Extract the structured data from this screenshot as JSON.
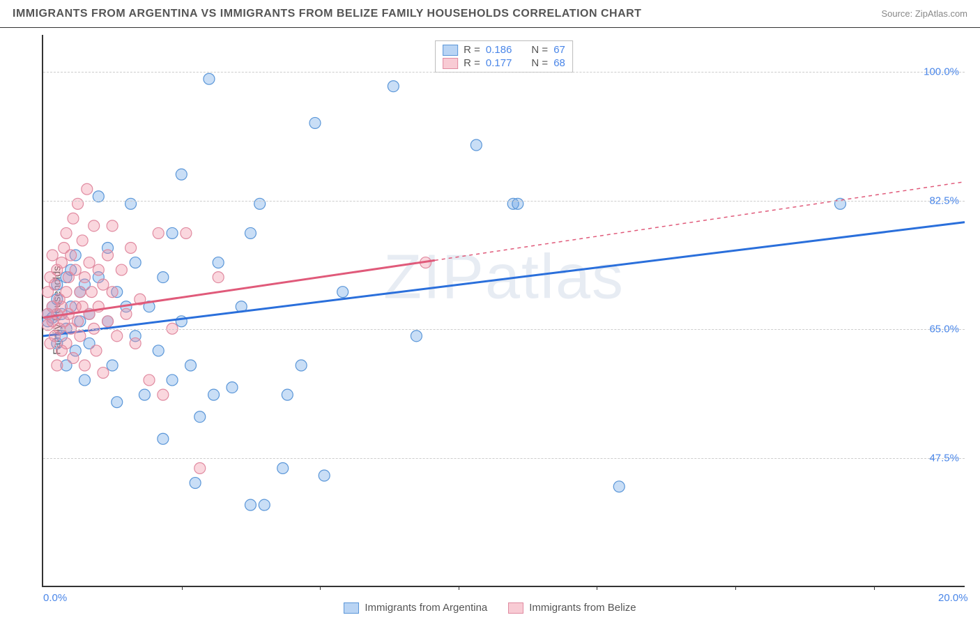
{
  "header": {
    "title": "IMMIGRANTS FROM ARGENTINA VS IMMIGRANTS FROM BELIZE FAMILY HOUSEHOLDS CORRELATION CHART",
    "source": "Source: ZipAtlas.com"
  },
  "chart": {
    "type": "scatter",
    "background_color": "#ffffff",
    "grid_color": "#cccccc",
    "axis_color": "#333333",
    "ylabel": "Family Households",
    "ylabel_fontsize": 15,
    "xlim": [
      0,
      20
    ],
    "ylim": [
      30,
      105
    ],
    "xticks": [
      0,
      20
    ],
    "xtick_labels": [
      "0.0%",
      "20.0%"
    ],
    "xtick_minor": [
      3,
      6,
      9,
      12,
      15,
      18
    ],
    "yticks": [
      47.5,
      65.0,
      82.5,
      100.0
    ],
    "ytick_labels": [
      "47.5%",
      "65.0%",
      "82.5%",
      "100.0%"
    ],
    "tick_label_color": "#4a86e8",
    "tick_label_fontsize": 15,
    "watermark": "ZIPatlas",
    "marker_radius": 8,
    "marker_stroke_width": 1.2,
    "marker_fill_opacity": 0.35,
    "trend_line_width": 3
  },
  "legend_top": {
    "rows": [
      {
        "swatch_fill": "rgba(100,160,230,0.45)",
        "swatch_border": "#5a96d8",
        "r_label": "R =",
        "r_value": "0.186",
        "n_label": "N =",
        "n_value": "67"
      },
      {
        "swatch_fill": "rgba(240,140,160,0.45)",
        "swatch_border": "#e08aa0",
        "r_label": "R =",
        "r_value": "0.177",
        "n_label": "N =",
        "n_value": "68"
      }
    ]
  },
  "legend_bottom": {
    "items": [
      {
        "swatch_fill": "rgba(100,160,230,0.45)",
        "swatch_border": "#5a96d8",
        "label": "Immigrants from Argentina"
      },
      {
        "swatch_fill": "rgba(240,140,160,0.45)",
        "swatch_border": "#e08aa0",
        "label": "Immigrants from Belize"
      }
    ]
  },
  "series": [
    {
      "name": "Immigrants from Argentina",
      "marker_fill": "rgba(100,160,230,0.35)",
      "marker_stroke": "#5a96d8",
      "trend_color": "#2a6fdb",
      "trend_start": [
        0,
        64
      ],
      "trend_solid_end": [
        20,
        79.5
      ],
      "trend_dashed_end": null,
      "points": [
        [
          0.1,
          66
        ],
        [
          0.1,
          67
        ],
        [
          0.2,
          66.5
        ],
        [
          0.2,
          68
        ],
        [
          0.3,
          69
        ],
        [
          0.3,
          63
        ],
        [
          0.3,
          71
        ],
        [
          0.4,
          64
        ],
        [
          0.4,
          67
        ],
        [
          0.5,
          72
        ],
        [
          0.5,
          65
        ],
        [
          0.5,
          60
        ],
        [
          0.6,
          73
        ],
        [
          0.6,
          68
        ],
        [
          0.7,
          62
        ],
        [
          0.7,
          75
        ],
        [
          0.8,
          66
        ],
        [
          0.8,
          70
        ],
        [
          0.9,
          58
        ],
        [
          0.9,
          71
        ],
        [
          1.0,
          67
        ],
        [
          1.0,
          63
        ],
        [
          1.2,
          83
        ],
        [
          1.2,
          72
        ],
        [
          1.4,
          66
        ],
        [
          1.4,
          76
        ],
        [
          1.5,
          60
        ],
        [
          1.6,
          55
        ],
        [
          1.6,
          70
        ],
        [
          1.8,
          68
        ],
        [
          1.9,
          82
        ],
        [
          2.0,
          64
        ],
        [
          2.0,
          74
        ],
        [
          2.2,
          56
        ],
        [
          2.3,
          68
        ],
        [
          2.5,
          62
        ],
        [
          2.6,
          72
        ],
        [
          2.6,
          50
        ],
        [
          2.8,
          58
        ],
        [
          2.8,
          78
        ],
        [
          3.0,
          86
        ],
        [
          3.0,
          66
        ],
        [
          3.2,
          60
        ],
        [
          3.3,
          44
        ],
        [
          3.4,
          53
        ],
        [
          3.6,
          99
        ],
        [
          3.7,
          56
        ],
        [
          3.8,
          74
        ],
        [
          4.1,
          57
        ],
        [
          4.3,
          68
        ],
        [
          4.5,
          78
        ],
        [
          4.5,
          41
        ],
        [
          4.7,
          82
        ],
        [
          4.8,
          41
        ],
        [
          5.2,
          46
        ],
        [
          5.3,
          56
        ],
        [
          5.6,
          60
        ],
        [
          5.9,
          93
        ],
        [
          6.1,
          45
        ],
        [
          6.5,
          70
        ],
        [
          7.6,
          98
        ],
        [
          8.1,
          64
        ],
        [
          9.4,
          90
        ],
        [
          10.2,
          82
        ],
        [
          10.3,
          82
        ],
        [
          12.5,
          43.5
        ],
        [
          17.3,
          82
        ]
      ]
    },
    {
      "name": "Immigrants from Belize",
      "marker_fill": "rgba(240,140,160,0.35)",
      "marker_stroke": "#e08aa0",
      "trend_color": "#e05a7a",
      "trend_start": [
        0,
        66.5
      ],
      "trend_solid_end": [
        8.5,
        74.3
      ],
      "trend_dashed_end": [
        20,
        85
      ],
      "points": [
        [
          0.1,
          67
        ],
        [
          0.1,
          65.5
        ],
        [
          0.1,
          70
        ],
        [
          0.15,
          63
        ],
        [
          0.15,
          72
        ],
        [
          0.2,
          68
        ],
        [
          0.2,
          66
        ],
        [
          0.2,
          75
        ],
        [
          0.25,
          64
        ],
        [
          0.25,
          71
        ],
        [
          0.3,
          67
        ],
        [
          0.3,
          60
        ],
        [
          0.3,
          73
        ],
        [
          0.35,
          69
        ],
        [
          0.35,
          65
        ],
        [
          0.4,
          74
        ],
        [
          0.4,
          62
        ],
        [
          0.4,
          68
        ],
        [
          0.45,
          76
        ],
        [
          0.45,
          66
        ],
        [
          0.5,
          70
        ],
        [
          0.5,
          63
        ],
        [
          0.5,
          78
        ],
        [
          0.55,
          67
        ],
        [
          0.55,
          72
        ],
        [
          0.6,
          65
        ],
        [
          0.6,
          75
        ],
        [
          0.65,
          80
        ],
        [
          0.65,
          61
        ],
        [
          0.7,
          68
        ],
        [
          0.7,
          73
        ],
        [
          0.75,
          82
        ],
        [
          0.75,
          66
        ],
        [
          0.8,
          70
        ],
        [
          0.8,
          64
        ],
        [
          0.85,
          77
        ],
        [
          0.85,
          68
        ],
        [
          0.9,
          72
        ],
        [
          0.9,
          60
        ],
        [
          0.95,
          84
        ],
        [
          1.0,
          74
        ],
        [
          1.0,
          67
        ],
        [
          1.05,
          70
        ],
        [
          1.1,
          65
        ],
        [
          1.1,
          79
        ],
        [
          1.15,
          62
        ],
        [
          1.2,
          73
        ],
        [
          1.2,
          68
        ],
        [
          1.3,
          71
        ],
        [
          1.3,
          59
        ],
        [
          1.4,
          75
        ],
        [
          1.4,
          66
        ],
        [
          1.5,
          79
        ],
        [
          1.5,
          70
        ],
        [
          1.6,
          64
        ],
        [
          1.7,
          73
        ],
        [
          1.8,
          67
        ],
        [
          1.9,
          76
        ],
        [
          2.0,
          63
        ],
        [
          2.1,
          69
        ],
        [
          2.3,
          58
        ],
        [
          2.5,
          78
        ],
        [
          2.6,
          56
        ],
        [
          2.8,
          65
        ],
        [
          3.1,
          78
        ],
        [
          3.4,
          46
        ],
        [
          3.8,
          72
        ],
        [
          8.3,
          74
        ]
      ]
    }
  ]
}
